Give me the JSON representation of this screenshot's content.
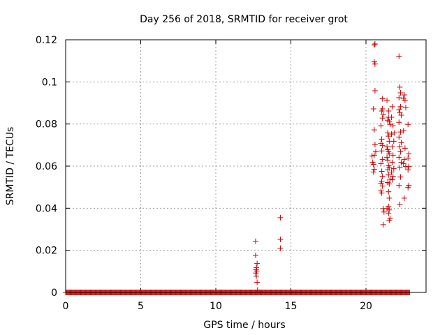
{
  "chart_data": {
    "type": "scatter",
    "title": "Day 256 of 2018, SRMTID for receiver grot",
    "xlabel": "GPS time / hours",
    "ylabel": "SRMTID / TECUs",
    "xlim": [
      0,
      24
    ],
    "ylim": [
      0,
      0.12
    ],
    "xticks": [
      0,
      5,
      10,
      15,
      20
    ],
    "xtick_labels": [
      "0",
      "5",
      "10",
      "15",
      "20"
    ],
    "yticks": [
      0,
      0.02,
      0.04,
      0.06,
      0.08,
      0.1,
      0.12
    ],
    "ytick_labels": [
      "0",
      "0.02",
      "0.04",
      "0.06",
      "0.08",
      "0.1",
      "0.12"
    ],
    "grid": true,
    "legend": "none",
    "marker": "+",
    "color": "#cc0000",
    "baseline_run": {
      "x_start": 0.0,
      "x_end": 22.9,
      "step": 0.05,
      "y": 0
    },
    "points": [
      [
        12.65,
        0.0243
      ],
      [
        12.65,
        0.0176
      ],
      [
        12.7,
        0.0118
      ],
      [
        12.68,
        0.0108
      ],
      [
        12.72,
        0.0102
      ],
      [
        12.66,
        0.0092
      ],
      [
        12.7,
        0.0077
      ],
      [
        12.75,
        0.0137
      ],
      [
        12.75,
        0.0048
      ],
      [
        12.78,
        0.0011
      ],
      [
        14.3,
        0.0355
      ],
      [
        14.3,
        0.0252
      ],
      [
        14.3,
        0.021
      ],
      [
        20.55,
        0.1175
      ],
      [
        20.6,
        0.118
      ],
      [
        20.55,
        0.1095
      ],
      [
        20.6,
        0.1085
      ],
      [
        20.6,
        0.0958
      ],
      [
        20.5,
        0.0872
      ],
      [
        20.55,
        0.0772
      ],
      [
        20.6,
        0.0702
      ],
      [
        20.55,
        0.0652
      ],
      [
        20.4,
        0.0648
      ],
      [
        20.45,
        0.0618
      ],
      [
        20.5,
        0.0608
      ],
      [
        20.55,
        0.0585
      ],
      [
        20.5,
        0.0572
      ],
      [
        20.65,
        0.0668
      ],
      [
        21.1,
        0.092
      ],
      [
        21.1,
        0.0872
      ],
      [
        21.05,
        0.0862
      ],
      [
        21.15,
        0.0845
      ],
      [
        21.1,
        0.0828
      ],
      [
        21.0,
        0.0792
      ],
      [
        21.05,
        0.0728
      ],
      [
        21.0,
        0.0708
      ],
      [
        21.1,
        0.0698
      ],
      [
        21.05,
        0.0672
      ],
      [
        21.1,
        0.0632
      ],
      [
        21.0,
        0.0612
      ],
      [
        21.05,
        0.0575
      ],
      [
        21.1,
        0.0552
      ],
      [
        21.05,
        0.0528
      ],
      [
        21.0,
        0.0518
      ],
      [
        21.1,
        0.0505
      ],
      [
        21.0,
        0.0482
      ],
      [
        21.05,
        0.0472
      ],
      [
        21.15,
        0.0398
      ],
      [
        21.2,
        0.0382
      ],
      [
        21.15,
        0.0322
      ],
      [
        21.4,
        0.0912
      ],
      [
        21.5,
        0.0862
      ],
      [
        21.5,
        0.0832
      ],
      [
        21.45,
        0.0818
      ],
      [
        21.55,
        0.0812
      ],
      [
        21.6,
        0.0798
      ],
      [
        21.45,
        0.0758
      ],
      [
        21.5,
        0.0742
      ],
      [
        21.55,
        0.0718
      ],
      [
        21.4,
        0.0692
      ],
      [
        21.45,
        0.0678
      ],
      [
        21.5,
        0.0668
      ],
      [
        21.55,
        0.0658
      ],
      [
        21.4,
        0.0642
      ],
      [
        21.45,
        0.0628
      ],
      [
        21.5,
        0.0602
      ],
      [
        21.55,
        0.0592
      ],
      [
        21.45,
        0.0582
      ],
      [
        21.5,
        0.0558
      ],
      [
        21.6,
        0.0538
      ],
      [
        21.45,
        0.0522
      ],
      [
        21.55,
        0.0515
      ],
      [
        21.5,
        0.0478
      ],
      [
        21.55,
        0.0448
      ],
      [
        21.5,
        0.0408
      ],
      [
        21.55,
        0.0392
      ],
      [
        21.5,
        0.0375
      ],
      [
        21.6,
        0.0352
      ],
      [
        21.55,
        0.0342
      ],
      [
        21.4,
        0.0398
      ],
      [
        21.75,
        0.0882
      ],
      [
        21.7,
        0.0832
      ],
      [
        21.8,
        0.0792
      ],
      [
        21.7,
        0.0752
      ],
      [
        21.85,
        0.0718
      ],
      [
        21.75,
        0.0692
      ],
      [
        21.8,
        0.0652
      ],
      [
        21.75,
        0.0618
      ],
      [
        21.85,
        0.0588
      ],
      [
        21.7,
        0.0572
      ],
      [
        21.8,
        0.0552
      ],
      [
        21.75,
        0.0535
      ],
      [
        21.9,
        0.0758
      ],
      [
        22.2,
        0.1122
      ],
      [
        22.25,
        0.0975
      ],
      [
        22.3,
        0.0948
      ],
      [
        22.2,
        0.0925
      ],
      [
        22.3,
        0.0882
      ],
      [
        22.2,
        0.0868
      ],
      [
        22.25,
        0.0855
      ],
      [
        22.35,
        0.0842
      ],
      [
        22.2,
        0.0808
      ],
      [
        22.3,
        0.0762
      ],
      [
        22.2,
        0.0738
      ],
      [
        22.35,
        0.0712
      ],
      [
        22.25,
        0.0692
      ],
      [
        22.3,
        0.0668
      ],
      [
        22.2,
        0.0642
      ],
      [
        22.35,
        0.0618
      ],
      [
        22.25,
        0.0592
      ],
      [
        22.3,
        0.0548
      ],
      [
        22.2,
        0.0508
      ],
      [
        22.25,
        0.0418
      ],
      [
        22.55,
        0.0938
      ],
      [
        22.5,
        0.0922
      ],
      [
        22.6,
        0.0912
      ],
      [
        22.65,
        0.0878
      ],
      [
        22.5,
        0.0768
      ],
      [
        22.6,
        0.0685
      ],
      [
        22.55,
        0.0632
      ],
      [
        22.5,
        0.0612
      ],
      [
        22.65,
        0.0598
      ],
      [
        22.55,
        0.0448
      ],
      [
        22.8,
        0.0798
      ],
      [
        22.85,
        0.0658
      ],
      [
        22.8,
        0.0638
      ],
      [
        22.85,
        0.0598
      ],
      [
        22.8,
        0.0582
      ],
      [
        22.85,
        0.0508
      ],
      [
        22.8,
        0.0498
      ]
    ]
  }
}
